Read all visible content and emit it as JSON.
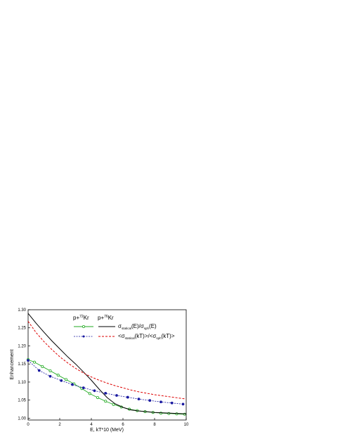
{
  "chart_data": {
    "type": "line",
    "xlabel": "E, kT*10 (MeV)",
    "ylabel": "Enhancement",
    "xlim": [
      0,
      10
    ],
    "ylim": [
      0.995,
      1.3
    ],
    "x_ticks": [
      "0",
      "2",
      "4",
      "6",
      "8",
      "10"
    ],
    "y_ticks": [
      "1.00",
      "1.05",
      "1.10",
      "1.15",
      "1.20",
      "1.25",
      "1.30"
    ],
    "grid": false,
    "legend_placement": "top-right",
    "legend_headers": [
      "p+",
      "72",
      "Kr",
      "p+",
      "76",
      "Kr"
    ],
    "legend_labels": [
      [
        "σ",
        "statical",
        "(E)/σ",
        "sph",
        "(E)"
      ],
      [
        "<σ",
        "statical",
        "(kT)>/<σ",
        "sph",
        "(kT)>"
      ]
    ],
    "colors": {
      "kr72_energy": "#22aa22",
      "kr72_thermal": "#1a1aa0",
      "kr76_energy": "#000000",
      "kr76_thermal": "#dd0000"
    },
    "series": [
      {
        "key": "kr72_energy",
        "x": [
          0,
          0.4,
          0.9,
          1.4,
          1.9,
          2.4,
          2.9,
          3.4,
          3.9,
          4.4,
          4.9,
          5.4,
          5.9,
          6.4,
          6.9,
          7.4,
          7.9,
          8.4,
          8.9,
          9.4,
          9.9
        ],
        "y": [
          1.162,
          1.155,
          1.143,
          1.131,
          1.119,
          1.107,
          1.095,
          1.082,
          1.068,
          1.057,
          1.047,
          1.038,
          1.031,
          1.025,
          1.021,
          1.018,
          1.016,
          1.014,
          1.013,
          1.012,
          1.011
        ]
      },
      {
        "key": "kr72_thermal",
        "x": [
          0,
          0.7,
          1.4,
          2.1,
          2.8,
          3.5,
          4.2,
          4.9,
          5.6,
          6.3,
          7.0,
          7.7,
          8.4,
          9.1,
          9.8
        ],
        "y": [
          1.16,
          1.132,
          1.116,
          1.104,
          1.093,
          1.084,
          1.076,
          1.069,
          1.063,
          1.058,
          1.053,
          1.049,
          1.045,
          1.042,
          1.039
        ]
      },
      {
        "key": "kr76_energy",
        "x": [
          0,
          0.5,
          1,
          1.5,
          2,
          2.5,
          3,
          3.5,
          4,
          4.5,
          5,
          5.5,
          6,
          6.5,
          7,
          7.5,
          8,
          8.5,
          9,
          9.5,
          10
        ],
        "y": [
          1.29,
          1.263,
          1.238,
          1.214,
          1.192,
          1.17,
          1.15,
          1.128,
          1.105,
          1.08,
          1.057,
          1.04,
          1.03,
          1.023,
          1.02,
          1.018,
          1.016,
          1.015,
          1.014,
          1.013,
          1.012
        ]
      },
      {
        "key": "kr76_thermal",
        "x": [
          0,
          0.5,
          1,
          1.5,
          2,
          2.5,
          3,
          3.5,
          4,
          4.5,
          5,
          5.5,
          6,
          6.5,
          7,
          7.5,
          8,
          8.5,
          9,
          9.5,
          10
        ],
        "y": [
          1.268,
          1.237,
          1.212,
          1.19,
          1.17,
          1.153,
          1.138,
          1.125,
          1.114,
          1.105,
          1.097,
          1.09,
          1.084,
          1.078,
          1.073,
          1.069,
          1.065,
          1.062,
          1.059,
          1.056,
          1.053
        ]
      }
    ]
  }
}
